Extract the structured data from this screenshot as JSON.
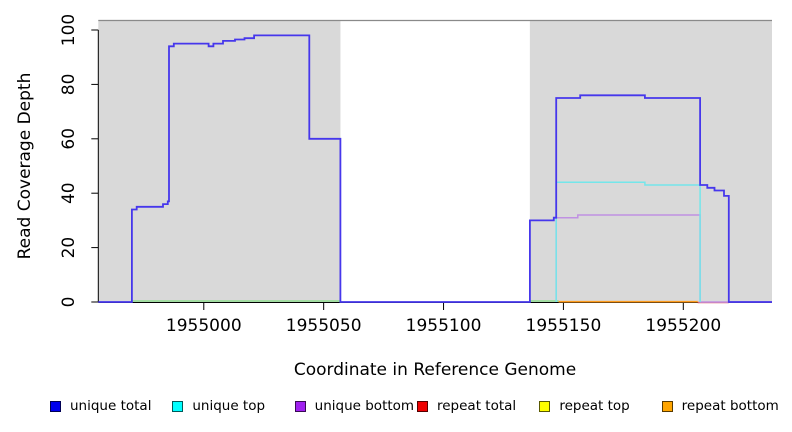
{
  "chart_data": {
    "type": "line",
    "title": "",
    "xlabel": "Coordinate in Reference Genome",
    "ylabel": "Read Coverage Depth",
    "xlim": [
      1954956,
      1955237
    ],
    "ylim": [
      0,
      103.7
    ],
    "x_ticks": [
      1955000,
      1955050,
      1955100,
      1955150,
      1955200
    ],
    "y_ticks": [
      0,
      20,
      40,
      60,
      80,
      100
    ],
    "grid": false,
    "legend_position": "bottom",
    "background_regions": [
      {
        "name": "covered-region-left",
        "x0": 1954956,
        "x1": 1955057,
        "color": "#d9d9d9"
      },
      {
        "name": "covered-region-right",
        "x0": 1955136,
        "x1": 1955237,
        "color": "#d9d9d9"
      }
    ],
    "top_line": {
      "y": 103.5,
      "color": "#8a8a8a"
    },
    "baseline_segments": [
      {
        "name": "unique-top-repeat-top-overlap-left",
        "color": "#8fdd8f",
        "y": 0.35,
        "x0": 1954970,
        "x1": 1955057
      },
      {
        "name": "unique-top-repeat-top-overlap-right",
        "color": "#8fdd8f",
        "y": 0.35,
        "x0": 1955136,
        "x1": 1955148
      }
    ],
    "draw_order": [
      5,
      3,
      4,
      2,
      1,
      0
    ],
    "series": [
      {
        "name": "unique total",
        "color": "#0000ee",
        "line_color": "#4637ec",
        "width": 1.8,
        "points": [
          [
            1954956,
            0
          ],
          [
            1954970,
            0
          ],
          [
            1954970,
            34
          ],
          [
            1954972,
            34
          ],
          [
            1954972,
            35
          ],
          [
            1954983,
            35
          ],
          [
            1954983,
            36
          ],
          [
            1954985,
            36
          ],
          [
            1954985,
            37
          ],
          [
            1954985.5,
            37
          ],
          [
            1954985.5,
            94
          ],
          [
            1954987.5,
            94
          ],
          [
            1954987.5,
            95
          ],
          [
            1955002,
            95
          ],
          [
            1955002,
            94
          ],
          [
            1955004,
            94
          ],
          [
            1955004,
            95
          ],
          [
            1955008,
            95
          ],
          [
            1955008,
            96
          ],
          [
            1955013,
            96
          ],
          [
            1955013,
            96.5
          ],
          [
            1955017,
            96.5
          ],
          [
            1955017,
            97
          ],
          [
            1955021,
            97
          ],
          [
            1955021,
            98
          ],
          [
            1955044,
            98
          ],
          [
            1955044,
            60
          ],
          [
            1955057,
            60
          ],
          [
            1955057,
            0
          ],
          [
            1955136,
            0
          ],
          [
            1955136,
            30
          ],
          [
            1955146,
            30
          ],
          [
            1955146,
            31
          ],
          [
            1955147,
            31
          ],
          [
            1955147,
            75
          ],
          [
            1955157,
            75
          ],
          [
            1955157,
            76
          ],
          [
            1955184,
            76
          ],
          [
            1955184,
            75
          ],
          [
            1955207,
            75
          ],
          [
            1955207,
            43
          ],
          [
            1955210,
            43
          ],
          [
            1955210,
            42
          ],
          [
            1955213,
            42
          ],
          [
            1955213,
            41
          ],
          [
            1955217,
            41
          ],
          [
            1955217,
            39
          ],
          [
            1955219,
            39
          ],
          [
            1955219,
            0
          ],
          [
            1955237,
            0
          ]
        ]
      },
      {
        "name": "unique top",
        "color": "#00ffff",
        "line_color": "#74e6ea",
        "width": 1.5,
        "points": [
          [
            1955147,
            0
          ],
          [
            1955147,
            44
          ],
          [
            1955184,
            44
          ],
          [
            1955184,
            43
          ],
          [
            1955207,
            43
          ],
          [
            1955207,
            0
          ]
        ]
      },
      {
        "name": "unique bottom",
        "color": "#a020f0",
        "line_color": "#c091e2",
        "width": 1.5,
        "points": [
          [
            1955147,
            0
          ],
          [
            1955147,
            31
          ],
          [
            1955156,
            31
          ],
          [
            1955156,
            32
          ],
          [
            1955207,
            32
          ],
          [
            1955207,
            0
          ],
          [
            1955237,
            0
          ]
        ]
      },
      {
        "name": "repeat total",
        "color": "#ee0000",
        "line_color": "#e05a70",
        "width": 1.5,
        "points": [
          [
            1955206,
            -0.2
          ],
          [
            1955219,
            -0.2
          ]
        ]
      },
      {
        "name": "repeat top",
        "color": "#ffff00",
        "line_color": "#e8e860",
        "width": 1.5,
        "points": []
      },
      {
        "name": "repeat bottom",
        "color": "#ffa500",
        "line_color": "#ff9d1e",
        "width": 1.6,
        "points": [
          [
            1955148,
            0.1
          ],
          [
            1955206,
            0.1
          ]
        ]
      }
    ]
  }
}
